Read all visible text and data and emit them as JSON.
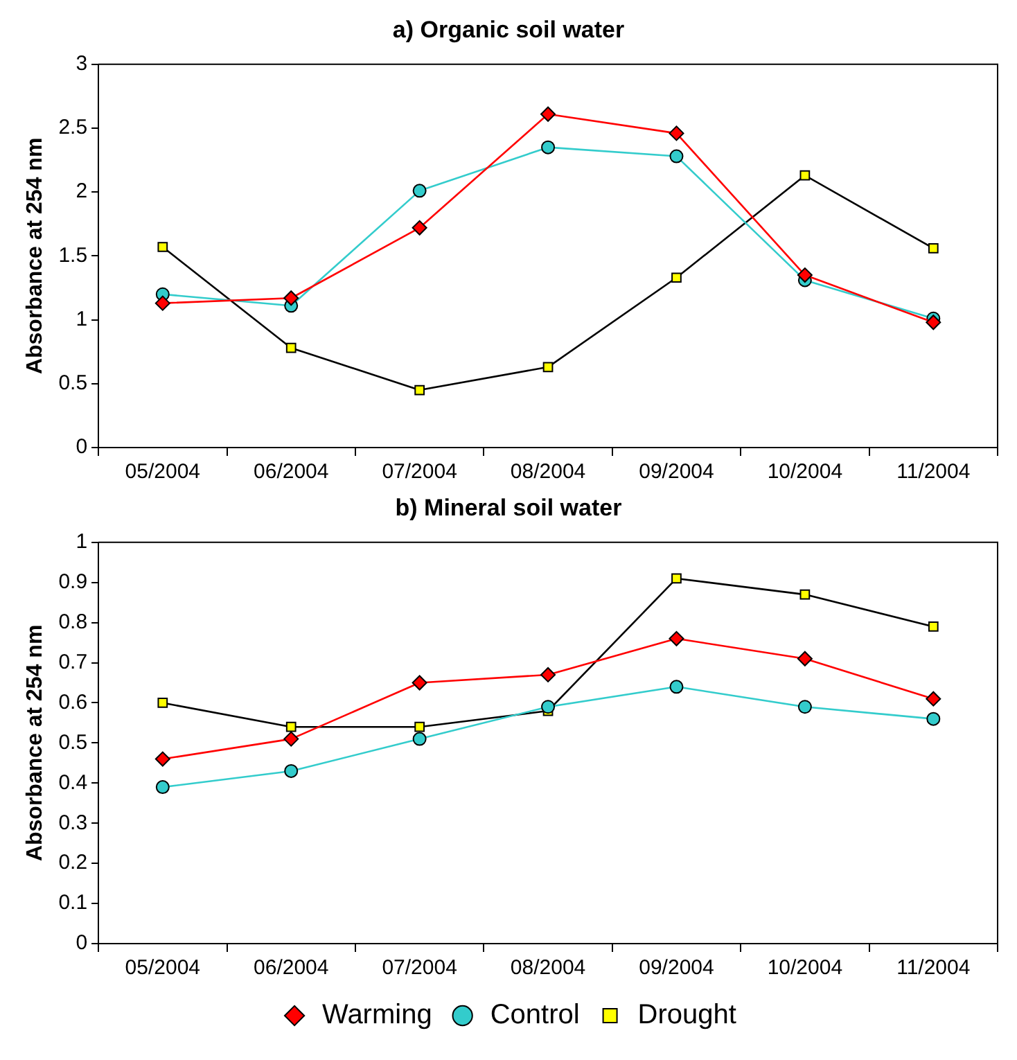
{
  "chart_data": [
    {
      "type": "line",
      "title": "a) Organic soil water",
      "ylabel": "Absorbance at 254 nm",
      "categories": [
        "05/2004",
        "06/2004",
        "07/2004",
        "08/2004",
        "09/2004",
        "10/2004",
        "11/2004"
      ],
      "ylim": [
        0,
        3
      ],
      "yticks": [
        0,
        0.5,
        1,
        1.5,
        2,
        2.5,
        3
      ],
      "grid": false,
      "legend": false,
      "series": [
        {
          "color": "#ff0000",
          "marker": "diamond",
          "values": [
            1.13,
            1.17,
            1.72,
            2.61,
            2.46,
            1.35,
            0.98
          ]
        },
        {
          "color": "#33cccc",
          "marker": "circle",
          "values": [
            1.2,
            1.11,
            2.01,
            2.35,
            2.28,
            1.31,
            1.01
          ]
        },
        {
          "color": "#000000",
          "colors": [
            "#ffff00",
            "#ffff00",
            "#ffff00",
            "#ffff00",
            "#ffff00",
            "#ffff00",
            "#ffff00"
          ],
          "marker": "square",
          "values": [
            1.57,
            0.78,
            0.45,
            0.63,
            1.33,
            2.13,
            1.56
          ]
        }
      ]
    },
    {
      "type": "line",
      "title": "b) Mineral soil water",
      "ylabel": "Absorbance at 254 nm",
      "categories": [
        "05/2004",
        "06/2004",
        "07/2004",
        "08/2004",
        "09/2004",
        "10/2004",
        "11/2004"
      ],
      "ylim": [
        0,
        1
      ],
      "yticks": [
        0,
        0.1,
        0.2,
        0.3,
        0.4,
        0.5,
        0.6,
        0.7,
        0.8,
        0.9,
        1
      ],
      "grid": false,
      "legend": "bottom",
      "series": [
        {
          "name": "Warming",
          "color": "#ff0000",
          "marker": "diamond",
          "values": [
            0.46,
            0.51,
            0.65,
            0.67,
            0.76,
            0.71,
            0.61
          ]
        },
        {
          "name": "Control",
          "color": "#33cccc",
          "marker": "circle",
          "values": [
            0.39,
            0.43,
            0.51,
            0.59,
            0.64,
            0.59,
            0.56
          ]
        },
        {
          "name": "Drought",
          "color": "#000000",
          "colors": [
            "#ffff00",
            "#ffff00",
            "#ffff00",
            "#ffff00",
            "#ffff00",
            "#ffff00",
            "#ffff00"
          ],
          "marker": "square",
          "values": [
            0.6,
            0.54,
            0.54,
            0.58,
            0.91,
            0.87,
            0.79
          ]
        }
      ]
    }
  ]
}
